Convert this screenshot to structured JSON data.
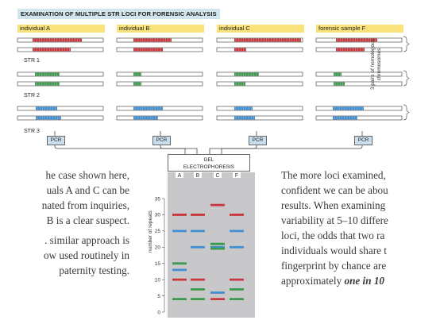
{
  "title": "EXAMINATION OF MULTIPLE STR LOCI FOR FORENSIC ANALYSIS",
  "individuals": [
    "individual A",
    "individual B",
    "individual C",
    "forensic sample F"
  ],
  "str_labels": [
    "STR 1",
    "STR 2",
    "STR 3"
  ],
  "side_label": "3 pairs of homologous chromosomes",
  "pcr_label": "PCR",
  "gel_label_1": "GEL",
  "gel_label_2": "ELECTROPHORESIS",
  "lanes": [
    "A",
    "B",
    "C",
    "F"
  ],
  "y_axis_label": "number of repeats",
  "text_left_1": [
    "he case shown here,",
    "uals A and C can be",
    "nated from inquiries,",
    "B is a clear suspect."
  ],
  "text_left_2": [
    ". similar approach is",
    "ow used routinely in",
    "paternity testing."
  ],
  "text_right_lines": [
    "The more loci examined,",
    "confident we can be abou",
    "results. When examining",
    "variability at 5–10 differe",
    "loci, the odds that two ra",
    "individuals would share t",
    "fingerprint by chance are"
  ],
  "text_right_last_prefix": "approximately ",
  "text_right_last_emph": "one in 10",
  "colors": {
    "str1": "#c8383c",
    "str2": "#3c9a4c",
    "str3": "#3f8fd2",
    "title_bg": "#d2e4ee",
    "label_bg": "#fae27a",
    "gel": "#c8c8cb"
  },
  "chart_data": {
    "type": "scatter",
    "title": "",
    "xlabel": "",
    "ylabel": "number of repeats",
    "categories": [
      "A",
      "B",
      "C",
      "F"
    ],
    "ylim": [
      0,
      37
    ],
    "yticks": [
      0,
      5,
      10,
      15,
      20,
      25,
      30,
      35
    ],
    "series": [
      {
        "lane": "A",
        "bands": [
          {
            "y": 30,
            "c": "red"
          },
          {
            "y": 25,
            "c": "blue"
          },
          {
            "y": 15,
            "c": "green"
          },
          {
            "y": 13,
            "c": "blue"
          },
          {
            "y": 10,
            "c": "red"
          },
          {
            "y": 4,
            "c": "green"
          }
        ]
      },
      {
        "lane": "B",
        "bands": [
          {
            "y": 30,
            "c": "red"
          },
          {
            "y": 25,
            "c": "blue"
          },
          {
            "y": 20,
            "c": "blue"
          },
          {
            "y": 10,
            "c": "red"
          },
          {
            "y": 7,
            "c": "green"
          },
          {
            "y": 4,
            "c": "green"
          }
        ]
      },
      {
        "lane": "C",
        "bands": [
          {
            "y": 33,
            "c": "red"
          },
          {
            "y": 21,
            "c": "green"
          },
          {
            "y": 20,
            "c": "blue"
          },
          {
            "y": 20,
            "c": "green"
          },
          {
            "y": 6,
            "c": "blue"
          },
          {
            "y": 4,
            "c": "red"
          }
        ]
      },
      {
        "lane": "F",
        "bands": [
          {
            "y": 30,
            "c": "red"
          },
          {
            "y": 25,
            "c": "blue"
          },
          {
            "y": 20,
            "c": "blue"
          },
          {
            "y": 10,
            "c": "red"
          },
          {
            "y": 7,
            "c": "green"
          },
          {
            "y": 4,
            "c": "green"
          }
        ]
      }
    ]
  }
}
